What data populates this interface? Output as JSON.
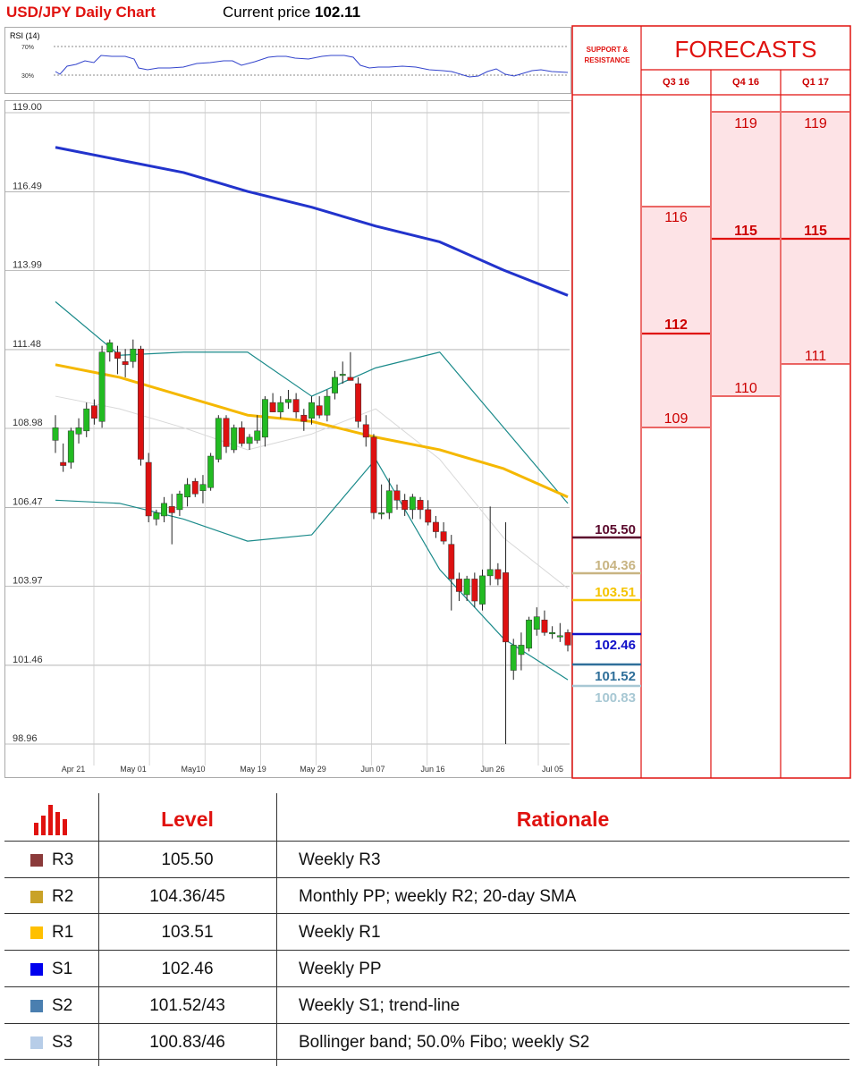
{
  "header": {
    "title": "USD/JPY Daily Chart",
    "current_price_label": "Current price",
    "current_price": "102.11"
  },
  "rsi": {
    "label": "RSI (14)",
    "upper_level": "70%",
    "lower_level": "30%"
  },
  "chart_data": {
    "type": "candlestick",
    "title": "USD/JPY Daily Chart",
    "y_ticks": [
      "119.00",
      "116.49",
      "113.99",
      "111.48",
      "108.98",
      "106.47",
      "103.97",
      "101.46",
      "98.96"
    ],
    "ylim": [
      98.96,
      119.0
    ],
    "x_ticks": [
      "Apr 21",
      "May 01",
      "May10",
      "May 19",
      "May 29",
      "Jun 07",
      "Jun 16",
      "Jun 26",
      "Jul 05"
    ],
    "candles": [
      {
        "o": 108.6,
        "h": 109.4,
        "l": 108.2,
        "c": 109.0
      },
      {
        "o": 107.9,
        "h": 108.5,
        "l": 107.6,
        "c": 107.8
      },
      {
        "o": 107.9,
        "h": 109.0,
        "l": 107.7,
        "c": 108.9
      },
      {
        "o": 108.8,
        "h": 109.3,
        "l": 108.5,
        "c": 109.0
      },
      {
        "o": 108.9,
        "h": 109.8,
        "l": 108.7,
        "c": 109.6
      },
      {
        "o": 109.7,
        "h": 109.9,
        "l": 109.1,
        "c": 109.3
      },
      {
        "o": 109.2,
        "h": 111.6,
        "l": 109.0,
        "c": 111.4
      },
      {
        "o": 111.4,
        "h": 111.8,
        "l": 111.1,
        "c": 111.7
      },
      {
        "o": 111.4,
        "h": 111.6,
        "l": 110.7,
        "c": 111.2
      },
      {
        "o": 111.1,
        "h": 111.5,
        "l": 110.6,
        "c": 111.0
      },
      {
        "o": 111.1,
        "h": 111.8,
        "l": 110.9,
        "c": 111.5
      },
      {
        "o": 111.5,
        "h": 111.6,
        "l": 107.8,
        "c": 108.0
      },
      {
        "o": 107.9,
        "h": 108.2,
        "l": 106.0,
        "c": 106.2
      },
      {
        "o": 106.1,
        "h": 106.4,
        "l": 105.9,
        "c": 106.3
      },
      {
        "o": 106.2,
        "h": 106.8,
        "l": 106.0,
        "c": 106.6
      },
      {
        "o": 106.5,
        "h": 106.9,
        "l": 105.3,
        "c": 106.3
      },
      {
        "o": 106.4,
        "h": 107.0,
        "l": 106.2,
        "c": 106.9
      },
      {
        "o": 106.8,
        "h": 107.4,
        "l": 106.5,
        "c": 107.2
      },
      {
        "o": 107.3,
        "h": 107.4,
        "l": 106.8,
        "c": 106.9
      },
      {
        "o": 107.0,
        "h": 107.5,
        "l": 106.6,
        "c": 107.2
      },
      {
        "o": 107.1,
        "h": 108.2,
        "l": 107.0,
        "c": 108.1
      },
      {
        "o": 108.0,
        "h": 109.4,
        "l": 107.9,
        "c": 109.3
      },
      {
        "o": 109.3,
        "h": 109.4,
        "l": 108.2,
        "c": 108.4
      },
      {
        "o": 108.3,
        "h": 109.1,
        "l": 108.2,
        "c": 109.0
      },
      {
        "o": 109.0,
        "h": 109.2,
        "l": 108.4,
        "c": 108.5
      },
      {
        "o": 108.5,
        "h": 108.8,
        "l": 108.3,
        "c": 108.7
      },
      {
        "o": 108.6,
        "h": 109.4,
        "l": 108.5,
        "c": 108.9
      },
      {
        "o": 108.7,
        "h": 110.0,
        "l": 108.4,
        "c": 109.9
      },
      {
        "o": 109.8,
        "h": 110.1,
        "l": 109.5,
        "c": 109.5
      },
      {
        "o": 109.5,
        "h": 110.0,
        "l": 109.3,
        "c": 109.8
      },
      {
        "o": 109.8,
        "h": 110.2,
        "l": 109.6,
        "c": 109.9
      },
      {
        "o": 109.9,
        "h": 110.1,
        "l": 109.3,
        "c": 109.5
      },
      {
        "o": 109.4,
        "h": 109.6,
        "l": 108.9,
        "c": 109.2
      },
      {
        "o": 109.3,
        "h": 110.0,
        "l": 109.1,
        "c": 109.8
      },
      {
        "o": 109.7,
        "h": 110.0,
        "l": 109.3,
        "c": 109.4
      },
      {
        "o": 109.4,
        "h": 110.2,
        "l": 109.2,
        "c": 110.0
      },
      {
        "o": 110.1,
        "h": 110.8,
        "l": 109.9,
        "c": 110.6
      },
      {
        "o": 110.7,
        "h": 111.1,
        "l": 110.4,
        "c": 110.7
      },
      {
        "o": 110.6,
        "h": 111.4,
        "l": 110.5,
        "c": 110.5
      },
      {
        "o": 110.4,
        "h": 110.6,
        "l": 109.0,
        "c": 109.2
      },
      {
        "o": 109.1,
        "h": 109.4,
        "l": 108.4,
        "c": 108.7
      },
      {
        "o": 108.7,
        "h": 108.8,
        "l": 106.1,
        "c": 106.3
      },
      {
        "o": 106.3,
        "h": 107.2,
        "l": 106.1,
        "c": 106.3
      },
      {
        "o": 106.3,
        "h": 107.4,
        "l": 106.1,
        "c": 107.0
      },
      {
        "o": 107.0,
        "h": 107.2,
        "l": 106.4,
        "c": 106.7
      },
      {
        "o": 106.7,
        "h": 106.9,
        "l": 106.2,
        "c": 106.4
      },
      {
        "o": 106.4,
        "h": 106.9,
        "l": 106.1,
        "c": 106.8
      },
      {
        "o": 106.7,
        "h": 106.8,
        "l": 106.1,
        "c": 106.4
      },
      {
        "o": 106.4,
        "h": 106.7,
        "l": 105.9,
        "c": 106.0
      },
      {
        "o": 106.0,
        "h": 106.2,
        "l": 105.5,
        "c": 105.7
      },
      {
        "o": 105.7,
        "h": 106.0,
        "l": 105.3,
        "c": 105.4
      },
      {
        "o": 105.3,
        "h": 105.6,
        "l": 103.2,
        "c": 104.2
      },
      {
        "o": 104.2,
        "h": 104.4,
        "l": 103.5,
        "c": 103.8
      },
      {
        "o": 103.7,
        "h": 104.3,
        "l": 103.5,
        "c": 104.2
      },
      {
        "o": 104.2,
        "h": 104.4,
        "l": 103.3,
        "c": 103.5
      },
      {
        "o": 103.4,
        "h": 104.5,
        "l": 103.2,
        "c": 104.3
      },
      {
        "o": 104.3,
        "h": 106.5,
        "l": 104.0,
        "c": 104.5
      },
      {
        "o": 104.5,
        "h": 104.7,
        "l": 104.0,
        "c": 104.2
      },
      {
        "o": 104.4,
        "h": 106.0,
        "l": 98.96,
        "c": 102.2
      },
      {
        "o": 101.3,
        "h": 102.3,
        "l": 101.0,
        "c": 102.1
      },
      {
        "o": 101.8,
        "h": 102.5,
        "l": 101.3,
        "c": 102.1
      },
      {
        "o": 102.0,
        "h": 103.0,
        "l": 101.9,
        "c": 102.9
      },
      {
        "o": 102.6,
        "h": 103.3,
        "l": 102.4,
        "c": 103.0
      },
      {
        "o": 102.9,
        "h": 103.2,
        "l": 102.4,
        "c": 102.5
      },
      {
        "o": 102.5,
        "h": 102.7,
        "l": 102.3,
        "c": 102.5
      },
      {
        "o": 102.4,
        "h": 102.8,
        "l": 102.2,
        "c": 102.4
      },
      {
        "o": 102.5,
        "h": 102.6,
        "l": 101.9,
        "c": 102.1
      }
    ],
    "sma200": [
      117.9,
      117.5,
      117.1,
      116.5,
      116.0,
      115.4,
      114.9,
      114.0,
      113.2
    ],
    "sma50": [
      111.0,
      110.6,
      110.0,
      109.4,
      109.2,
      108.7,
      108.3,
      107.7,
      106.8
    ],
    "bb_upper": [
      113.0,
      111.3,
      111.4,
      111.4,
      110.0,
      110.9,
      111.4,
      109.0,
      106.6
    ],
    "bb_lower": [
      106.7,
      106.6,
      106.1,
      105.4,
      105.6,
      108.0,
      104.5,
      102.3,
      101.0
    ],
    "bb_mid": [
      110.0,
      109.6,
      109.0,
      108.3,
      108.8,
      109.6,
      108.0,
      105.5,
      103.9
    ]
  },
  "sr_panel": {
    "header": "SUPPORT & RESISTANCE",
    "levels": [
      {
        "value": "105.50",
        "color": "#5b0a2d"
      },
      {
        "value": "104.36",
        "color": "#c8b482"
      },
      {
        "value": "103.51",
        "color": "#f5c400"
      },
      {
        "value": "102.46",
        "color": "#1010c8"
      },
      {
        "value": "101.52",
        "color": "#2f6f9a"
      },
      {
        "value": "100.83",
        "color": "#a8c8d4"
      }
    ]
  },
  "forecasts": {
    "title": "FORECASTS",
    "columns": [
      {
        "label": "Q3 16",
        "high": "116",
        "mid": "112",
        "low": "109"
      },
      {
        "label": "Q4 16",
        "high": "119",
        "mid": "115",
        "low": "110"
      },
      {
        "label": "Q1 17",
        "high": "119",
        "mid": "115",
        "low": "111"
      }
    ]
  },
  "table": {
    "level_header": "Level",
    "rationale_header": "Rationale",
    "rows": [
      {
        "name": "R3",
        "level": "105.50",
        "rationale": "Weekly R3",
        "color": "#8b3a3a"
      },
      {
        "name": "R2",
        "level": "104.36/45",
        "rationale": "Monthly PP; weekly R2; 20-day SMA",
        "color": "#c9a227"
      },
      {
        "name": "R1",
        "level": "103.51",
        "rationale": "Weekly R1",
        "color": "#ffc000"
      },
      {
        "name": "S1",
        "level": "102.46",
        "rationale": "Weekly PP",
        "color": "#0000ee"
      },
      {
        "name": "S2",
        "level": "101.52/43",
        "rationale": "Weekly S1; trend-line",
        "color": "#4a7fb0"
      },
      {
        "name": "S3",
        "level": "100.83/46",
        "rationale": "Bollinger band; 50.0% Fibo; weekly S2",
        "color": "#b7cde8"
      }
    ]
  }
}
